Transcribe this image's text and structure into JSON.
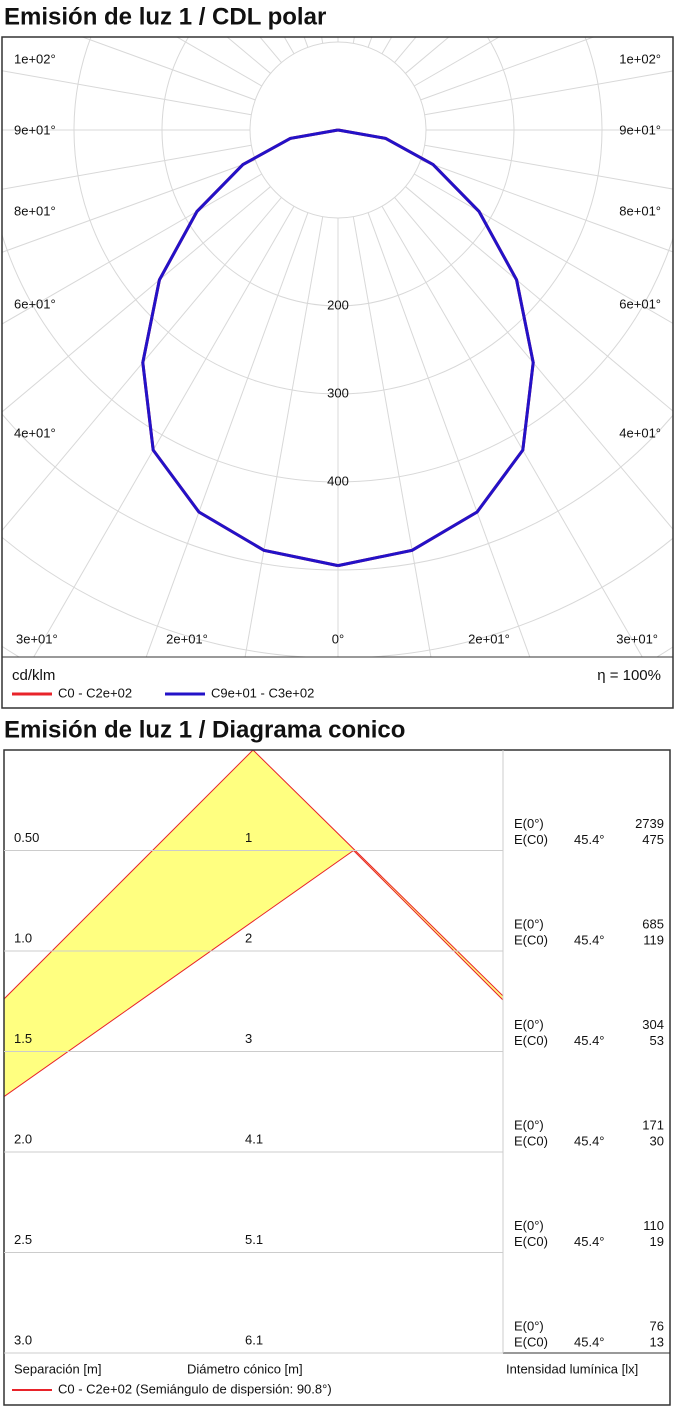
{
  "chart_data": [
    {
      "type": "polar",
      "title": "Emisión de luz 1 / CDL polar",
      "x": [
        0,
        10,
        20,
        30,
        40,
        50,
        60,
        70,
        80,
        90
      ],
      "series": [
        {
          "name": "C0 - C2e+02",
          "color": "#e8232a",
          "values": [
            495,
            485,
            462,
            420,
            345,
            265,
            185,
            115,
            55,
            0
          ]
        },
        {
          "name": "C9e+01 - C3e+02",
          "color": "#2312c8",
          "values": [
            495,
            485,
            462,
            420,
            345,
            265,
            185,
            115,
            55,
            0
          ]
        }
      ],
      "rticks": [
        200,
        300,
        400
      ],
      "left_angle_labels": [
        "1e+02°",
        "9e+01°",
        "8e+01°",
        "6e+01°",
        "4e+01°"
      ],
      "right_angle_labels": [
        "1e+02°",
        "9e+01°",
        "8e+01°",
        "6e+01°",
        "4e+01°"
      ],
      "bottom_angle_labels": [
        "3e+01°",
        "2e+01°",
        "0°",
        "2e+01°",
        "3e+01°"
      ],
      "unit": "cd/klm",
      "efficiency": "η = 100%"
    },
    {
      "type": "conic",
      "title": "Emisión de luz 1 / Diagrama conico",
      "separation": [
        0.5,
        1.0,
        1.5,
        2.0,
        2.5,
        3.0
      ],
      "separation_labels": [
        "0.50",
        "1.0",
        "1.5",
        "2.0",
        "2.5",
        "3.0"
      ],
      "diameter": [
        1.0,
        2.0,
        3.0,
        4.1,
        5.1,
        6.1
      ],
      "e0": [
        2739,
        685,
        304,
        171,
        110,
        76
      ],
      "ec0": [
        475,
        119,
        53,
        30,
        19,
        13
      ],
      "e0_label": "E(0°)",
      "ec0_label": "E(C0)",
      "angle_label": "45.4°",
      "color": "#ffff80",
      "edge_color": "#e8232a",
      "separation_title": "Separación [m]",
      "diameter_title": "Diámetro cónico [m]",
      "intensity_title": "Intensidad lumínica [lx]",
      "legend": "C0 - C2e+02 (Semiángulo de dispersión: 90.8°)"
    }
  ]
}
